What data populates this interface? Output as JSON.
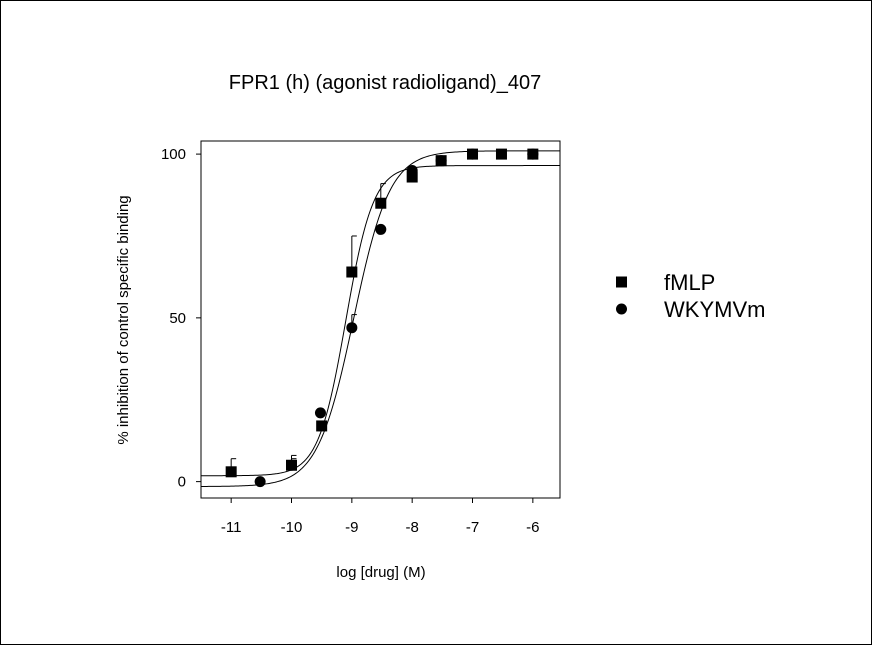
{
  "chart_data": {
    "type": "scatter",
    "title": "FPR1 (h) (agonist radioligand)_407",
    "xlabel": "log [drug] (M)",
    "ylabel": "% inhibition of control specific binding",
    "xlim": [
      -11.5,
      -5.55
    ],
    "ylim": [
      -5,
      104
    ],
    "xticks": [
      -11,
      -10,
      -9,
      -8,
      -7,
      -6
    ],
    "yticks": [
      0,
      50,
      100
    ],
    "grid": false,
    "legend_position": "right",
    "series": [
      {
        "name": "fMLP",
        "marker": "square",
        "color": "#000000",
        "points": [
          {
            "x": -11.0,
            "y": 3,
            "err": 4
          },
          {
            "x": -10.0,
            "y": 5,
            "err": 2
          },
          {
            "x": -9.5,
            "y": 17,
            "err": 0
          },
          {
            "x": -9.0,
            "y": 64,
            "err": 11
          },
          {
            "x": -8.52,
            "y": 85,
            "err": 6
          },
          {
            "x": -8.0,
            "y": 93,
            "err": 0
          },
          {
            "x": -7.52,
            "y": 98,
            "err": 0
          },
          {
            "x": -7.0,
            "y": 100,
            "err": 0
          },
          {
            "x": -6.52,
            "y": 100,
            "err": 0
          },
          {
            "x": -6.0,
            "y": 100,
            "err": 0
          }
        ],
        "fit": {
          "bottom": 1.8,
          "top": 96.5,
          "log_ec50": -9.1,
          "hill": 1.9
        }
      },
      {
        "name": "WKYMVm",
        "marker": "circle",
        "color": "#000000",
        "points": [
          {
            "x": -10.52,
            "y": 0,
            "err": 0
          },
          {
            "x": -10.0,
            "y": 5,
            "err": 3
          },
          {
            "x": -9.52,
            "y": 21,
            "err": 0
          },
          {
            "x": -9.0,
            "y": 47,
            "err": 4
          },
          {
            "x": -8.52,
            "y": 77,
            "err": 0
          },
          {
            "x": -8.0,
            "y": 95,
            "err": 0
          },
          {
            "x": -7.52,
            "y": 98,
            "err": 0
          },
          {
            "x": -7.0,
            "y": 100,
            "err": 0
          },
          {
            "x": -6.0,
            "y": 100,
            "err": 0
          }
        ],
        "fit": {
          "bottom": -1.5,
          "top": 101,
          "log_ec50": -8.97,
          "hill": 1.45
        }
      }
    ]
  }
}
